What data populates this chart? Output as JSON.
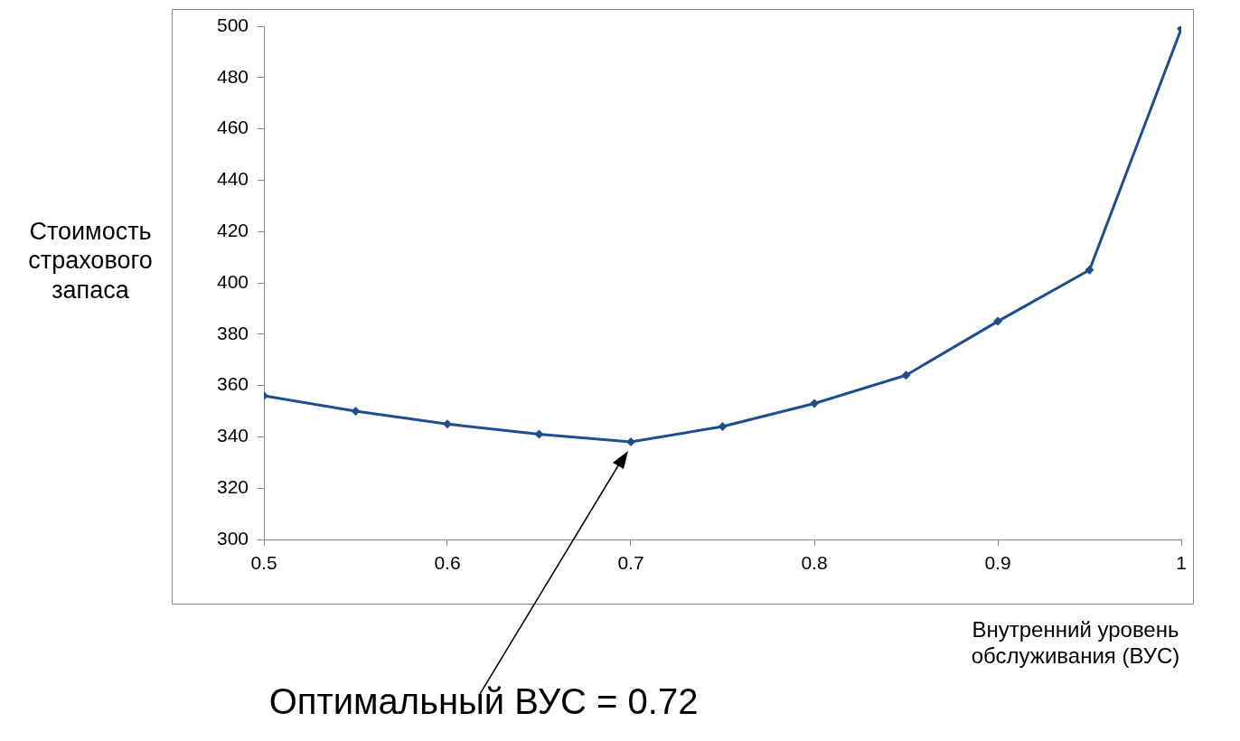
{
  "chart_data": {
    "type": "line",
    "xlabel": "Внутренний уровень обслуживания (ВУС)",
    "ylabel": "Стоимость страхового запаса",
    "x": [
      0.5,
      0.55,
      0.6,
      0.65,
      0.7,
      0.75,
      0.8,
      0.85,
      0.9,
      0.95,
      1
    ],
    "series": [
      {
        "color": "#1f4e8c",
        "values": [
          356,
          350,
          345,
          341,
          338,
          344,
          353,
          364,
          385,
          405,
          499
        ]
      }
    ],
    "marker": "diamond",
    "grid": false,
    "legend": false,
    "xlim": [
      0.5,
      1
    ],
    "xticks": [
      0.5,
      0.6,
      0.7,
      0.8,
      0.9,
      1
    ],
    "ylim": [
      300,
      500
    ],
    "yticks": [
      300,
      320,
      340,
      360,
      380,
      400,
      420,
      440,
      460,
      480,
      500
    ],
    "annotations": [
      "Оптимальный ВУС = 0.72"
    ]
  }
}
